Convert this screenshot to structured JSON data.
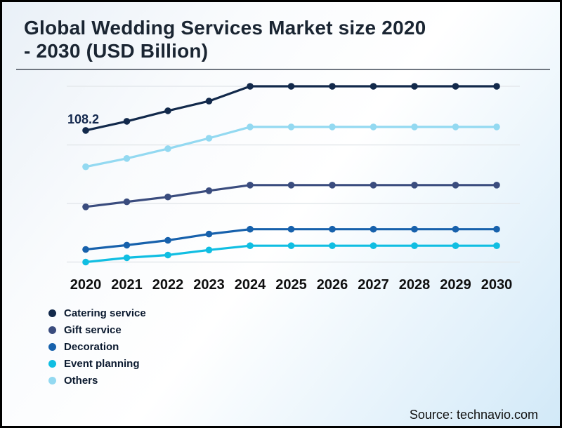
{
  "header": {
    "title_line1": "Global Wedding Services Market size 2020",
    "title_line2": "- 2030 (USD Billion)"
  },
  "footer": {
    "source": "Source: technavio.com"
  },
  "colors": {
    "frame": "#000000",
    "title_text": "#1a2532",
    "divider": "#6f7680",
    "gridline": "#e4e8eb",
    "axis_label": "#0f0f0f",
    "legend_text": "#0b1a2f",
    "annotation_text": "#14294e",
    "background_top_left": "#e9f0f7",
    "background_bottom_right": "#d2e9f8"
  },
  "chart_data": {
    "type": "line",
    "title": "Global Wedding Services Market size 2020 - 2030 (USD Billion)",
    "xlabel": "",
    "ylabel": "USD Billion",
    "categories": [
      "2020",
      "2021",
      "2022",
      "2023",
      "2024",
      "2025",
      "2026",
      "2027",
      "2028",
      "2029",
      "2030"
    ],
    "series": [
      {
        "name": "Catering service",
        "color": "#12294b",
        "values": [
          108.2,
          112.9,
          118.3,
          123.3,
          130.9,
          130.9,
          130.9,
          130.9,
          130.9,
          130.9,
          130.9
        ]
      },
      {
        "name": "Gift service",
        "color": "#3a4c7e",
        "values": [
          68.9,
          71.5,
          74.0,
          77.2,
          80.1,
          80.1,
          80.1,
          80.1,
          80.1,
          80.1,
          80.1
        ]
      },
      {
        "name": "Decoration",
        "color": "#1761ac",
        "values": [
          47.0,
          49.2,
          51.7,
          54.9,
          57.4,
          57.4,
          57.4,
          57.4,
          57.4,
          57.4,
          57.4
        ]
      },
      {
        "name": "Event planning",
        "color": "#10bee2",
        "values": [
          40.5,
          42.7,
          44.1,
          46.7,
          48.9,
          48.9,
          48.9,
          48.9,
          48.9,
          48.9,
          48.9
        ]
      },
      {
        "name": "Others",
        "color": "#93d9f1",
        "values": [
          89.5,
          93.8,
          98.8,
          104.2,
          110.0,
          110.0,
          110.0,
          110.0,
          110.0,
          110.0,
          110.0
        ]
      }
    ],
    "annotation": {
      "text": "108.2",
      "series": "Catering service",
      "category": "2020"
    },
    "ylim": [
      40.5,
      130.9
    ],
    "gridline_count": 4,
    "grid": true,
    "legend_position": "bottom-left",
    "markers": true
  }
}
